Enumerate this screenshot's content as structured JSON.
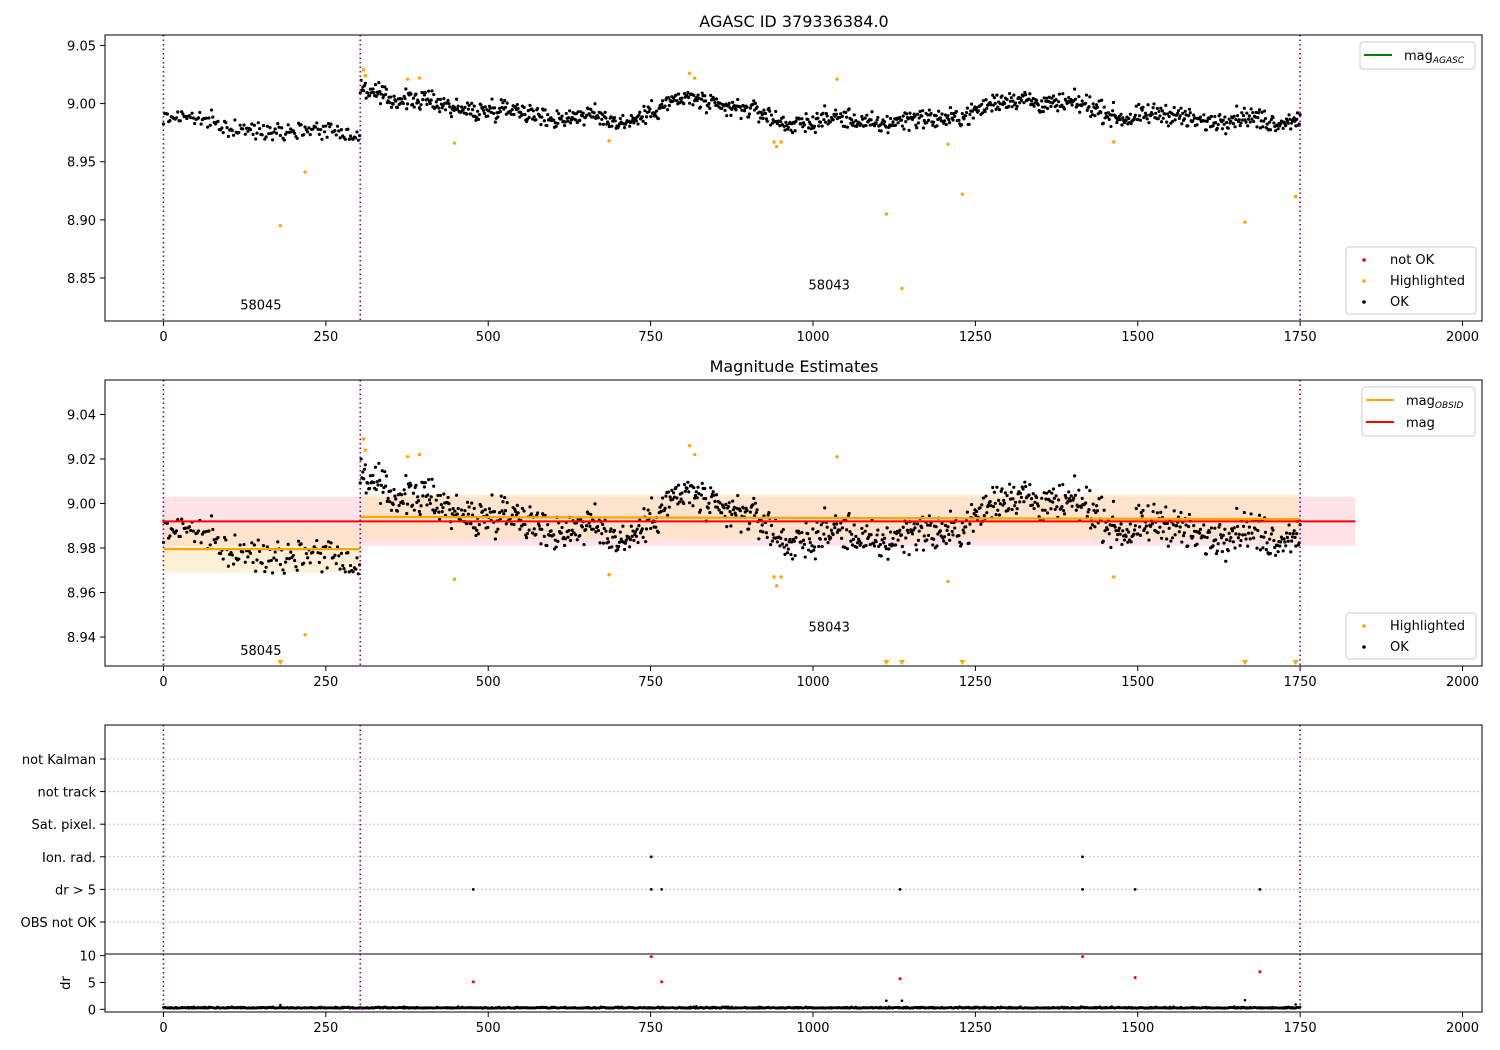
{
  "figure": {
    "panel1_title": "AGASC ID 379336384.0",
    "panel2_title": "Magnitude Estimates"
  },
  "colors": {
    "ok": "#000000",
    "highlighted": "#ffa500",
    "not_ok": "#ff0000",
    "mag_agasc": "#008000",
    "mag_obsid": "#ffa500",
    "mag": "#ff0000",
    "obs_boundary": "#800080",
    "mag_band": "#ffc0cb",
    "obsid_band": "#ffe4b5"
  },
  "chart_data": [
    {
      "type": "scatter",
      "title": "AGASC ID 379336384.0",
      "xlim": [
        -90,
        2030
      ],
      "ylim": [
        8.813,
        9.059
      ],
      "xticks": [
        0,
        250,
        500,
        750,
        1000,
        1250,
        1500,
        1750,
        2000
      ],
      "yticks": [
        8.85,
        8.9,
        8.95,
        9.0,
        9.05
      ],
      "ytick_labels": [
        "8.85",
        "8.90",
        "8.95",
        "9.00",
        "9.05"
      ],
      "grid": false,
      "legend_top": {
        "placement": "top-right",
        "entries": [
          {
            "label": "mag",
            "subscript": "AGASC",
            "style": "line",
            "color": "#008000"
          }
        ]
      },
      "legend_bottom": {
        "placement": "bottom-right",
        "entries": [
          {
            "label": "not OK",
            "style": "dot",
            "color": "#ff0000"
          },
          {
            "label": "Highlighted",
            "style": "dot",
            "color": "#ffa500"
          },
          {
            "label": "OK",
            "style": "dot",
            "color": "#000000"
          }
        ]
      },
      "obs_boundaries": [
        0,
        303,
        1750
      ],
      "obs_labels": [
        {
          "text": "58045",
          "x": 150,
          "y": 8.823
        },
        {
          "text": "58043",
          "x": 1025,
          "y": 8.84
        }
      ],
      "ok_segments": [
        {
          "x0": 0,
          "x1": 303,
          "step": 2,
          "mean": 8.98,
          "amp": 0.006,
          "noise": 0.005,
          "trend": [
            [
              0,
              8.987
            ],
            [
              80,
              8.985
            ],
            [
              150,
              8.973
            ],
            [
              230,
              8.982
            ],
            [
              300,
              8.968
            ]
          ]
        },
        {
          "x0": 303,
          "x1": 1750,
          "step": 1.3,
          "mean": 8.995,
          "amp": 0.006,
          "noise": 0.006,
          "trend": [
            [
              303,
              9.013
            ],
            [
              400,
              9.0
            ],
            [
              700,
              8.985
            ],
            [
              820,
              9.005
            ],
            [
              950,
              8.985
            ],
            [
              1180,
              8.985
            ],
            [
              1330,
              9.005
            ],
            [
              1480,
              8.99
            ],
            [
              1700,
              8.985
            ],
            [
              1750,
              8.99
            ]
          ]
        }
      ],
      "highlighted": [
        [
          180,
          8.895
        ],
        [
          218,
          8.941
        ],
        [
          308,
          9.029
        ],
        [
          311,
          9.024
        ],
        [
          376,
          9.021
        ],
        [
          394,
          9.022
        ],
        [
          448,
          8.966
        ],
        [
          686,
          8.968
        ],
        [
          810,
          9.026
        ],
        [
          818,
          9.022
        ],
        [
          940,
          8.967
        ],
        [
          944,
          8.963
        ],
        [
          951,
          8.967
        ],
        [
          1037,
          9.021
        ],
        [
          1113,
          8.905
        ],
        [
          1137,
          8.841
        ],
        [
          1208,
          8.965
        ],
        [
          1230,
          8.922
        ],
        [
          1463,
          8.967
        ],
        [
          1665,
          8.898
        ],
        [
          1743,
          8.92
        ]
      ],
      "not_ok": []
    },
    {
      "type": "scatter",
      "title": "Magnitude Estimates",
      "xlim": [
        -90,
        2030
      ],
      "ylim": [
        8.927,
        9.0555
      ],
      "xticks": [
        0,
        250,
        500,
        750,
        1000,
        1250,
        1500,
        1750,
        2000
      ],
      "yticks": [
        8.94,
        8.96,
        8.98,
        9.0,
        9.02,
        9.04
      ],
      "ytick_labels": [
        "8.94",
        "8.96",
        "8.98",
        "9.00",
        "9.02",
        "9.04"
      ],
      "grid": false,
      "legend_top": {
        "placement": "top-right",
        "entries": [
          {
            "label": "mag",
            "subscript": "OBSID",
            "style": "line",
            "color": "#ffa500"
          },
          {
            "label": "mag",
            "style": "line",
            "color": "#ff0000"
          }
        ]
      },
      "legend_bottom": {
        "placement": "bottom-right",
        "entries": [
          {
            "label": "Highlighted",
            "style": "dot",
            "color": "#ffa500"
          },
          {
            "label": "OK",
            "style": "dot",
            "color": "#000000"
          }
        ]
      },
      "obs_boundaries": [
        0,
        303,
        1750
      ],
      "obs_labels": [
        {
          "text": "58045",
          "x": 150,
          "y": 8.932
        },
        {
          "text": "58043",
          "x": 1025,
          "y": 8.9425
        }
      ],
      "mag_line": {
        "y": 8.992,
        "lo": 8.981,
        "hi": 9.003,
        "x0": -2,
        "x1": 1835
      },
      "obsid_lines": [
        {
          "x0": 0,
          "x1": 303,
          "y0": 8.9795,
          "y1": 8.9795,
          "lo": 8.969,
          "hi": 8.99
        },
        {
          "x0": 303,
          "x1": 1750,
          "y0": 8.994,
          "y1": 8.993,
          "lo": 8.984,
          "hi": 9.004
        }
      ],
      "ok_segments": [
        {
          "x0": 0,
          "x1": 303,
          "step": 2,
          "mean": 8.98,
          "amp": 0.006,
          "noise": 0.005,
          "trend": [
            [
              0,
              8.987
            ],
            [
              80,
              8.985
            ],
            [
              150,
              8.973
            ],
            [
              230,
              8.982
            ],
            [
              300,
              8.968
            ]
          ]
        },
        {
          "x0": 303,
          "x1": 1750,
          "step": 1.3,
          "mean": 8.995,
          "amp": 0.006,
          "noise": 0.006,
          "trend": [
            [
              303,
              9.013
            ],
            [
              400,
              9.0
            ],
            [
              700,
              8.985
            ],
            [
              820,
              9.005
            ],
            [
              950,
              8.985
            ],
            [
              1180,
              8.985
            ],
            [
              1330,
              9.005
            ],
            [
              1480,
              8.99
            ],
            [
              1700,
              8.985
            ],
            [
              1750,
              8.99
            ]
          ]
        }
      ],
      "highlighted": [
        [
          218,
          8.941
        ],
        [
          308,
          9.029
        ],
        [
          311,
          9.024
        ],
        [
          376,
          9.021
        ],
        [
          394,
          9.022
        ],
        [
          448,
          8.966
        ],
        [
          686,
          8.968
        ],
        [
          810,
          9.026
        ],
        [
          818,
          9.022
        ],
        [
          940,
          8.967
        ],
        [
          944,
          8.963
        ],
        [
          951,
          8.967
        ],
        [
          1037,
          9.021
        ],
        [
          1208,
          8.965
        ],
        [
          1463,
          8.967
        ]
      ],
      "off_scale_low_markers_x": [
        180,
        1113,
        1137,
        1230,
        1665,
        1743
      ]
    },
    {
      "type": "scatter",
      "title": "",
      "xlim": [
        -90,
        2030
      ],
      "ylabels": [
        "not Kalman",
        "not track",
        "Sat. pixel.",
        "Ion. rad.",
        "dr > 5",
        "OBS not OK"
      ],
      "obs_boundaries": [
        0,
        303,
        1750
      ],
      "grid": true,
      "flags": [
        {
          "category": "Ion. rad.",
          "x": [
            751,
            1415
          ]
        },
        {
          "category": "dr > 5",
          "x": [
            477,
            751,
            767,
            1134,
            1415,
            1496,
            1688
          ]
        }
      ]
    },
    {
      "type": "scatter",
      "title": "",
      "ylabel": "dr",
      "xlim": [
        -90,
        2030
      ],
      "ylim": [
        -0.5,
        10.3
      ],
      "xticks": [
        0,
        250,
        500,
        750,
        1000,
        1250,
        1500,
        1750,
        2000
      ],
      "yticks": [
        0,
        5,
        10
      ],
      "ytick_labels": [
        "0",
        "5",
        "10"
      ],
      "ok_baseline": {
        "x0": 0,
        "x1": 1750,
        "step": 1.3,
        "mean": 0.2,
        "noise": 0.25
      },
      "ok_extra": [
        [
          180,
          0.8
        ],
        [
          1113,
          1.6
        ],
        [
          1137,
          1.6
        ],
        [
          1665,
          1.7
        ],
        [
          1743,
          0.9
        ]
      ],
      "not_ok": [
        [
          477,
          5.1
        ],
        [
          751,
          9.8
        ],
        [
          767,
          5.1
        ],
        [
          1134,
          5.7
        ],
        [
          1415,
          9.8
        ],
        [
          1496,
          5.9
        ],
        [
          1688,
          7.0
        ]
      ]
    }
  ]
}
